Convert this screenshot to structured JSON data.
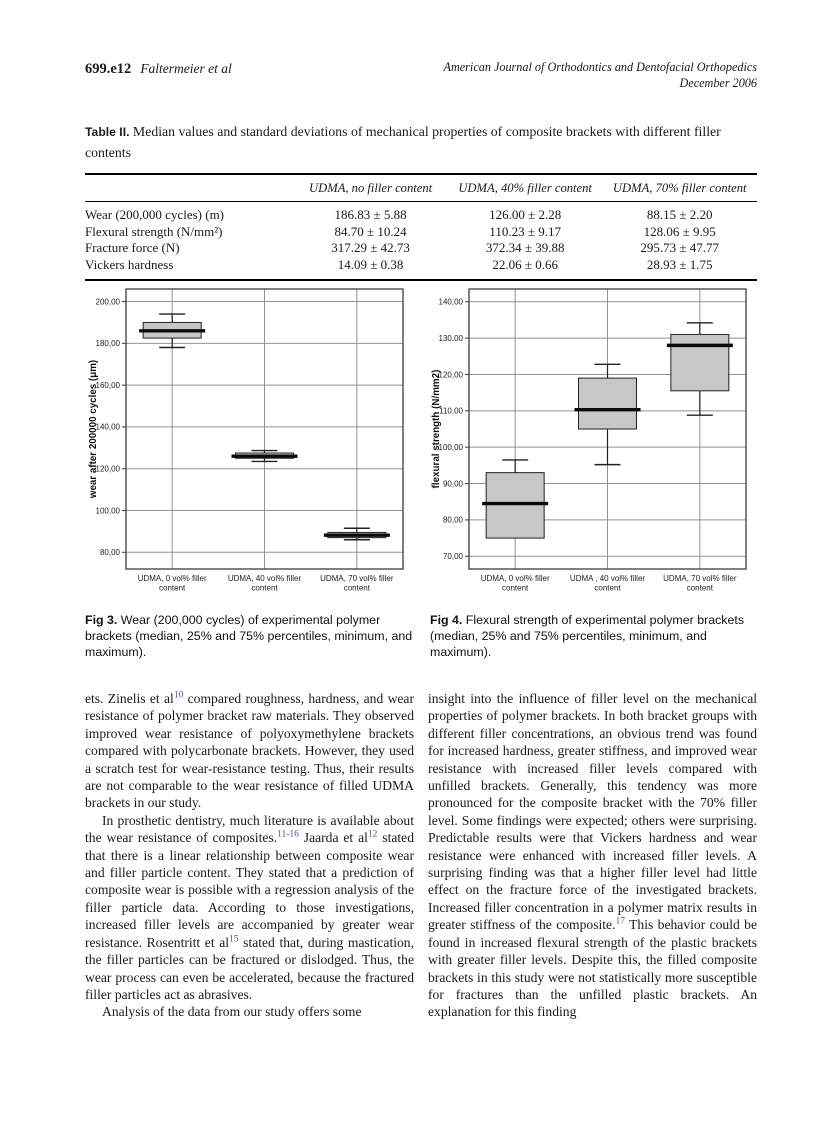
{
  "page": {
    "header": {
      "page_number": "699.e12",
      "authors": "Faltermeier et al",
      "journal_line1": "American Journal of Orthodontics and Dentofacial Orthopedics",
      "journal_line2": "December 2006"
    },
    "table": {
      "label": "Table II.",
      "title": " Median values and standard deviations of mechanical properties of composite brackets with different filler contents",
      "columns": [
        "",
        "UDMA, no filler content",
        "UDMA, 40% filler content",
        "UDMA, 70% filler content"
      ],
      "rows": [
        [
          "Wear (200,000 cycles) (m)",
          "186.83 ± 5.88",
          "126.00 ± 2.28",
          "88.15 ± 2.20"
        ],
        [
          "Flexural strength (N/mm²)",
          "84.70 ± 10.24",
          "110.23 ± 9.17",
          "128.06 ± 9.95"
        ],
        [
          "Fracture force (N)",
          "317.29 ± 42.73",
          "372.34 ± 39.88",
          "295.73 ± 47.77"
        ],
        [
          "Vickers hardness",
          "14.09 ± 0.38",
          "22.06 ± 0.66",
          "28.93 ± 1.75"
        ]
      ]
    },
    "figures": [
      {
        "label": "Fig 3.",
        "caption": " Wear (200,000 cycles) of experimental polymer brackets (median, 25% and 75% percentiles, minimum, and maximum)."
      },
      {
        "label": "Fig 4.",
        "caption": " Flexural strength of experimental polymer brackets (median, 25% and 75% percentiles, minimum, and maximum)."
      }
    ],
    "body": {
      "left_column": [
        {
          "indent": false,
          "segments": [
            {
              "t": "ets. Zinelis et al"
            },
            {
              "sup": "10"
            },
            {
              "t": " compared roughness, hardness, and wear resistance of polymer bracket raw materials. They observed improved wear resistance of polyoxymethylene brackets compared with polycarbonate brackets. However, they used a scratch test for wear-resistance testing. Thus, their results are not comparable to the wear resistance of filled UDMA brackets in our study."
            }
          ]
        },
        {
          "indent": true,
          "segments": [
            {
              "t": "In prosthetic dentistry, much literature is available about the wear resistance of composites."
            },
            {
              "sup": "11-16"
            },
            {
              "t": " Jaarda et al"
            },
            {
              "sup": "12"
            },
            {
              "t": " stated that there is a linear relationship between composite wear and filler particle content. They stated that a prediction of composite wear is possible with a regression analysis of the filler particle data. According to those investigations, increased filler levels are accompanied by greater wear resistance. Rosentritt et al"
            },
            {
              "sup": "15"
            },
            {
              "t": " stated that, during mastication, the filler particles can be fractured or dislodged. Thus, the wear process can even be accelerated, because the fractured filler particles act as abrasives."
            }
          ]
        },
        {
          "indent": true,
          "segments": [
            {
              "t": "Analysis of the data from our study offers some"
            }
          ]
        }
      ],
      "right_column": [
        {
          "indent": false,
          "segments": [
            {
              "t": "insight into the influence of filler level on the mechanical properties of polymer brackets. In both bracket groups with different filler concentrations, an obvious trend was found for increased hardness, greater stiffness, and improved wear resistance with increased filler levels compared with unfilled brackets. Generally, this tendency was more pronounced for the composite bracket with the 70% filler level. Some findings were expected; others were surprising. Predictable results were that Vickers hardness and wear resistance were enhanced with increased filler levels. A surprising finding was that a higher filler level had little effect on the fracture force of the investigated brackets. Increased filler concentration in a polymer matrix results in greater stiffness of the composite."
            },
            {
              "sup": "17"
            },
            {
              "t": " This behavior could be found in increased flexural strength of the plastic brackets with greater filler levels. Despite this, the filled composite brackets in this study were not statistically more susceptible for fractures than the unfilled plastic brackets. An explanation for this finding"
            }
          ]
        }
      ]
    }
  },
  "chart_data": [
    {
      "type": "boxplot",
      "title": "",
      "ylabel": "wear after 200000 cycles (μm)",
      "xlabel": "",
      "ylim": [
        72,
        206
      ],
      "grid": true,
      "yticks": [
        80,
        100,
        120,
        140,
        160,
        180,
        200
      ],
      "ytick_labels": [
        "80,00",
        "100,00",
        "120,00",
        "140,00",
        "160,00",
        "180,00",
        "200,00"
      ],
      "categories": [
        [
          "UDMA, 0 vol% filler",
          "content"
        ],
        [
          "UDMA, 40 vol% filler",
          "content"
        ],
        [
          "UDMA, 70 vol% filler",
          "content"
        ]
      ],
      "boxes": [
        {
          "min": 178,
          "q1": 182.5,
          "median": 186,
          "q3": 190,
          "max": 194
        },
        {
          "min": 123.5,
          "q1": 125,
          "median": 126,
          "q3": 127.5,
          "max": 128.7
        },
        {
          "min": 86,
          "q1": 87,
          "median": 88.2,
          "q3": 89.5,
          "max": 91.5
        }
      ]
    },
    {
      "type": "boxplot",
      "title": "",
      "ylabel": "flexural strength (N/mm2)",
      "xlabel": "",
      "ylim": [
        66.5,
        143.5
      ],
      "grid": true,
      "yticks": [
        70,
        80,
        90,
        100,
        110,
        120,
        130,
        140
      ],
      "ytick_labels": [
        "70,00",
        "80,00",
        "90,00",
        "100,00",
        "110,00",
        "120,00",
        "130,00",
        "140,00"
      ],
      "categories": [
        [
          "UDMA, 0 vol% filler",
          "content"
        ],
        [
          "UDMA , 40 vol% filler",
          "content"
        ],
        [
          "UDMA, 70 vol% filler",
          "content"
        ]
      ],
      "boxes": [
        {
          "min": 75,
          "q1": 75,
          "median": 84.5,
          "q3": 93,
          "max": 96.5
        },
        {
          "min": 95.2,
          "q1": 105,
          "median": 110.3,
          "q3": 119,
          "max": 122.8
        },
        {
          "min": 108.8,
          "q1": 115.5,
          "median": 128,
          "q3": 131,
          "max": 134.2
        }
      ]
    }
  ],
  "colors": {
    "box_fill": "#c7c7c7",
    "grid": "#929292",
    "frame": "#3c3c3c",
    "median": "#0a0a0a",
    "reference_link": "#3d5a98",
    "text": "#1a1a1a"
  }
}
